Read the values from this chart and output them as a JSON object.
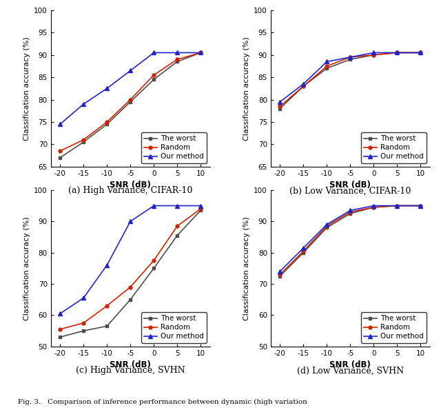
{
  "snr": [
    -20,
    -15,
    -10,
    -5,
    0,
    5,
    10
  ],
  "subplot_a": {
    "title": "(a) High Variance, CIFAR-10",
    "worst": [
      67.0,
      70.5,
      74.5,
      79.5,
      84.5,
      88.5,
      90.5
    ],
    "random": [
      68.5,
      71.0,
      75.0,
      80.0,
      85.5,
      89.0,
      90.5
    ],
    "ours": [
      74.5,
      79.0,
      82.5,
      86.5,
      90.5,
      90.5,
      90.5
    ],
    "ylim": [
      65,
      100
    ],
    "yticks": [
      65,
      70,
      75,
      80,
      85,
      90,
      95,
      100
    ]
  },
  "subplot_b": {
    "title": "(b) Low Variance, CIFAR-10",
    "worst": [
      78.0,
      83.0,
      87.0,
      89.0,
      90.0,
      90.5,
      90.5
    ],
    "random": [
      78.5,
      83.0,
      87.5,
      89.5,
      90.0,
      90.5,
      90.5
    ],
    "ours": [
      79.5,
      83.5,
      88.5,
      89.5,
      90.5,
      90.5,
      90.5
    ],
    "ylim": [
      65,
      100
    ],
    "yticks": [
      65,
      70,
      75,
      80,
      85,
      90,
      95,
      100
    ]
  },
  "subplot_c": {
    "title": "(c) High Variance, SVHN",
    "worst": [
      53.0,
      55.0,
      56.5,
      65.0,
      75.0,
      85.5,
      93.5
    ],
    "random": [
      55.5,
      57.5,
      63.0,
      69.0,
      77.5,
      88.5,
      94.0
    ],
    "ours": [
      60.5,
      65.5,
      76.0,
      90.0,
      95.0,
      95.0,
      95.0
    ],
    "ylim": [
      50,
      100
    ],
    "yticks": [
      50,
      60,
      70,
      80,
      90,
      100
    ]
  },
  "subplot_d": {
    "title": "(d) Low Variance, SVHN",
    "worst": [
      72.5,
      80.0,
      88.0,
      92.5,
      94.5,
      95.0,
      95.0
    ],
    "random": [
      73.0,
      80.5,
      88.5,
      93.0,
      94.5,
      95.0,
      95.0
    ],
    "ours": [
      74.0,
      81.5,
      89.0,
      93.5,
      95.0,
      95.0,
      95.0
    ],
    "ylim": [
      50,
      100
    ],
    "yticks": [
      50,
      60,
      70,
      80,
      90,
      100
    ]
  },
  "colors": {
    "worst": "#4d4d4d",
    "random": "#cc2200",
    "ours": "#2222cc"
  },
  "xlabel": "SNR (dB)",
  "ylabel": "Classification accuracy (%)",
  "caption": "Fig. 3.   Comparison of inference performance between dynamic (high variation"
}
